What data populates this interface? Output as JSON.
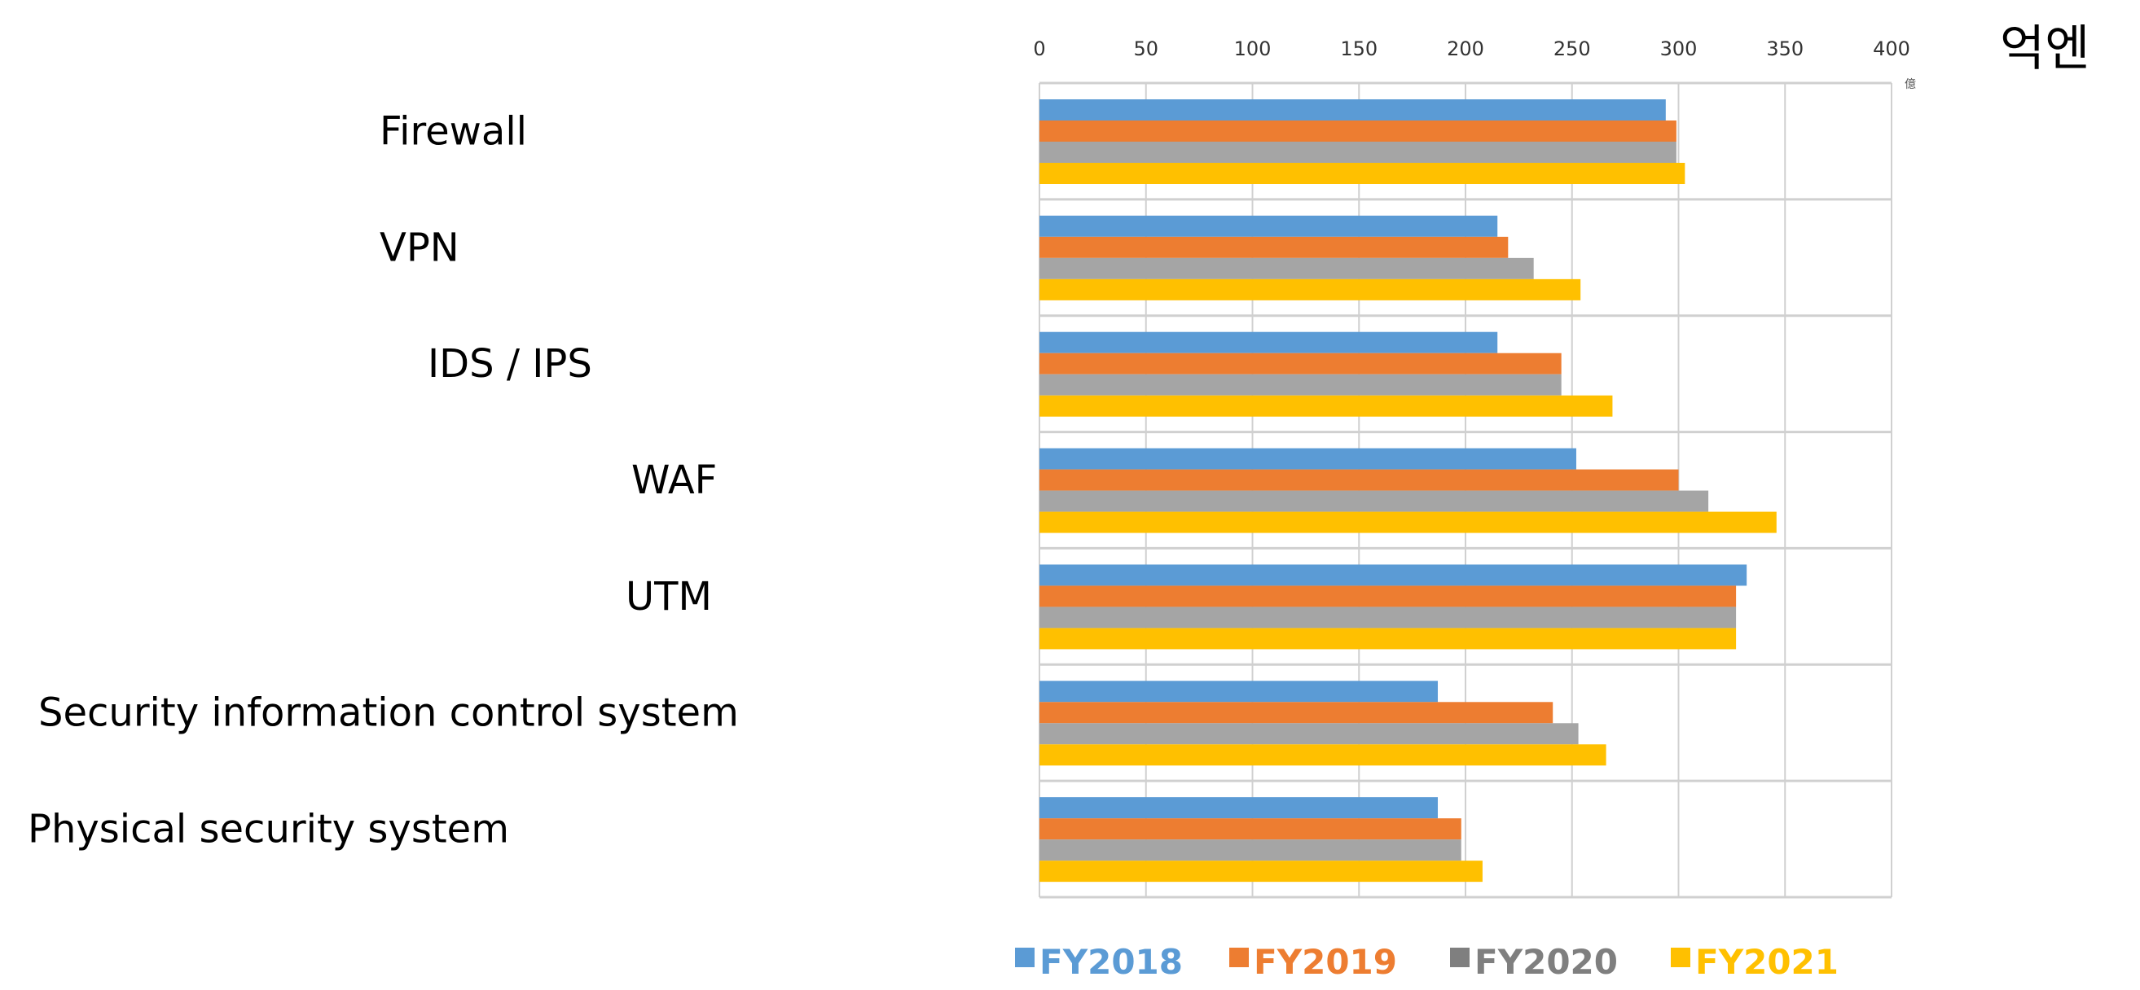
{
  "chart_data": {
    "type": "bar",
    "orientation": "horizontal",
    "unit_label": "억엔",
    "axis_unit_small": "億",
    "categories": [
      "Firewall",
      "VPN",
      "IDS / IPS",
      "WAF",
      "UTM",
      "Security information control system",
      "Physical security system"
    ],
    "xlim": [
      0,
      400
    ],
    "xticks": [
      "0",
      "50",
      "100",
      "150",
      "200",
      "250",
      "300",
      "350",
      "400"
    ],
    "grid": true,
    "legend_position": "bottom",
    "series": [
      {
        "name": "FY2018",
        "color": "#5b9bd5",
        "values": [
          294,
          215,
          215,
          252,
          332,
          187,
          187
        ]
      },
      {
        "name": "FY2019",
        "color": "#ed7d31",
        "values": [
          299,
          220,
          245,
          300,
          327,
          241,
          198
        ]
      },
      {
        "name": "FY2020",
        "color": "#a5a5a5",
        "values": [
          299,
          232,
          245,
          314,
          327,
          253,
          198
        ]
      },
      {
        "name": "FY2021",
        "color": "#ffc000",
        "values": [
          303,
          254,
          269,
          346,
          327,
          266,
          208
        ]
      }
    ],
    "legend_text_colors": [
      "#5b9bd5",
      "#ed7d31",
      "#7f7f7f",
      "#ffc000"
    ]
  }
}
